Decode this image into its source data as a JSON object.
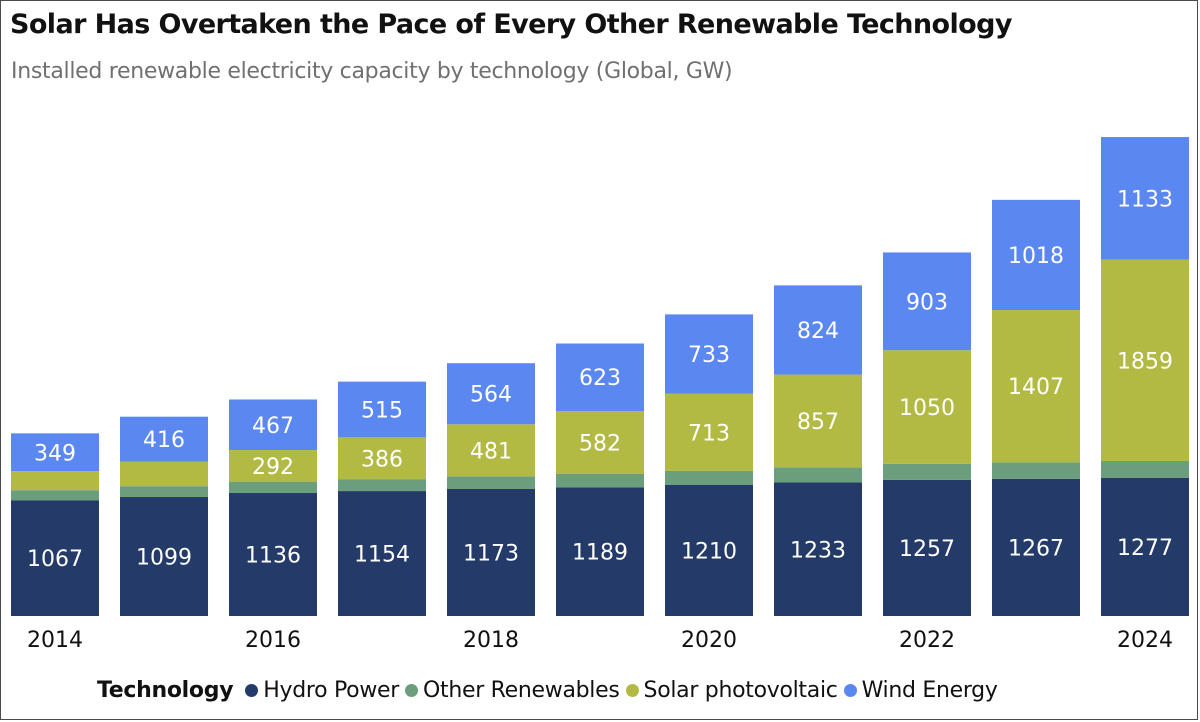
{
  "chart_data": {
    "type": "stacked-bar",
    "title": "Solar Has Overtaken the Pace of Every Other Renewable Technology",
    "subtitle": "Installed renewable electricity capacity by technology (Global, GW)",
    "xlabel": "",
    "ylabel": "",
    "categories": [
      "2014",
      "2015",
      "2016",
      "2017",
      "2018",
      "2019",
      "2020",
      "2021",
      "2022",
      "2023",
      "2024"
    ],
    "x_tick_labels": [
      "2014",
      "",
      "2016",
      "",
      "2018",
      "",
      "2020",
      "",
      "2022",
      "",
      "2024"
    ],
    "legend_title": "Technology",
    "legend_position": "bottom",
    "ylim": [
      0,
      4600
    ],
    "grid": false,
    "series": [
      {
        "name": "Hydro Power",
        "color": "#243a69",
        "values": [
          1067,
          1099,
          1136,
          1154,
          1173,
          1189,
          1210,
          1233,
          1257,
          1267,
          1277
        ],
        "labels": [
          "1067",
          "1099",
          "1136",
          "1154",
          "1173",
          "1189",
          "1210",
          "1233",
          "1257",
          "1267",
          "1277"
        ]
      },
      {
        "name": "Other Renewables",
        "color": "#6a9e7d",
        "values": [
          95,
          100,
          105,
          110,
          117,
          123,
          130,
          140,
          148,
          152,
          155
        ],
        "labels": [
          "",
          "",
          "",
          "",
          "",
          "",
          "",
          "",
          "",
          "",
          ""
        ]
      },
      {
        "name": "Solar photovoltaic",
        "color": "#b3ba44",
        "values": [
          176,
          226,
          292,
          386,
          481,
          582,
          713,
          857,
          1050,
          1407,
          1859
        ],
        "labels": [
          "",
          "",
          "292",
          "386",
          "481",
          "582",
          "713",
          "857",
          "1050",
          "1407",
          "1859"
        ]
      },
      {
        "name": "Wind Energy",
        "color": "#5b87f1",
        "values": [
          349,
          416,
          467,
          515,
          564,
          623,
          733,
          824,
          903,
          1018,
          1133
        ],
        "labels": [
          "349",
          "416",
          "467",
          "515",
          "564",
          "623",
          "733",
          "824",
          "903",
          "1018",
          "1133"
        ]
      }
    ]
  }
}
